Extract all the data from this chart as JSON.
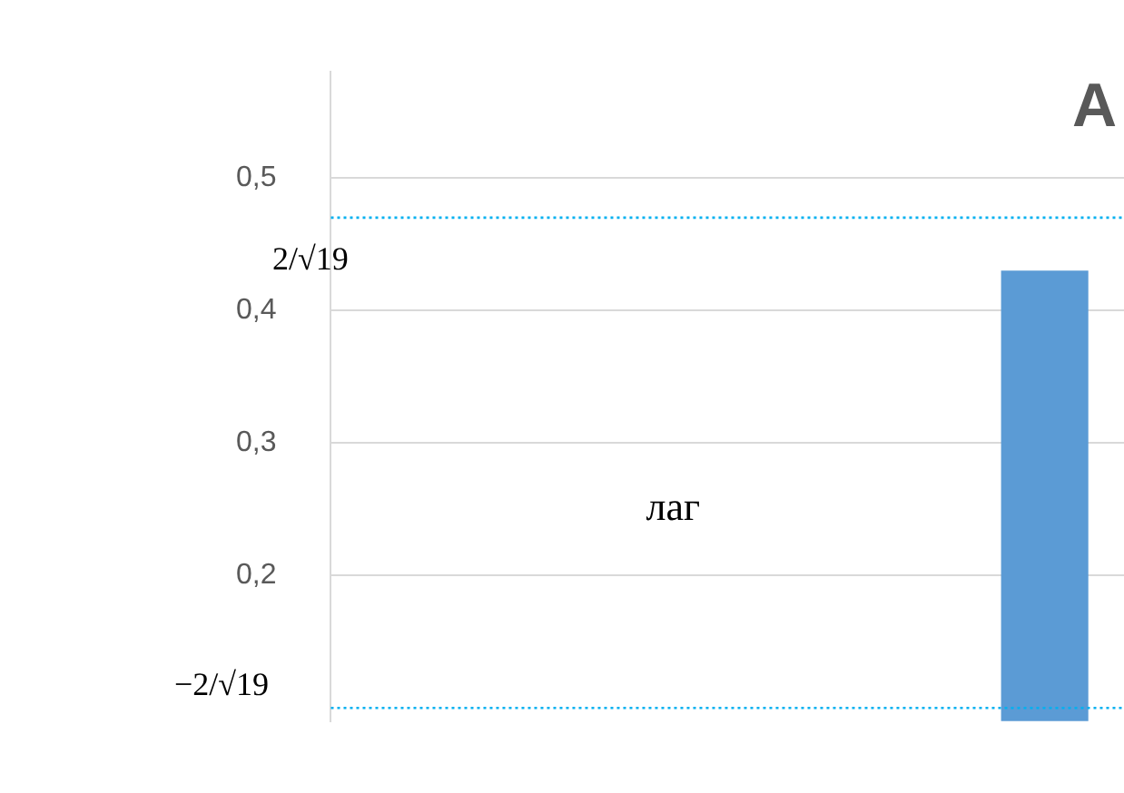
{
  "chart_data": {
    "type": "bar",
    "title": "А",
    "categories": [
      null,
      null,
      null,
      null,
      null
    ],
    "values": [
      null,
      null,
      null,
      null,
      0.43
    ],
    "color": "#5b9bd5",
    "ylim": [
      0.09,
      0.58
    ],
    "yticks": [
      {
        "value": 0.2,
        "label": "0,2"
      },
      {
        "value": 0.3,
        "label": "0,3"
      },
      {
        "value": 0.4,
        "label": "0,4"
      },
      {
        "value": 0.5,
        "label": "0,5"
      }
    ],
    "grid": "y",
    "legend": false,
    "tick_labels": "y",
    "ref_lines": [
      {
        "axis": "y",
        "value": 0.47,
        "label": "2/√19",
        "color": "#00b0f0",
        "line_style": "dotted"
      },
      {
        "axis": "y",
        "value": 0.1,
        "label": "−2/√19",
        "color": "#00b0f0",
        "line_style": "dotted"
      }
    ],
    "annotations": [
      "лаг"
    ]
  }
}
